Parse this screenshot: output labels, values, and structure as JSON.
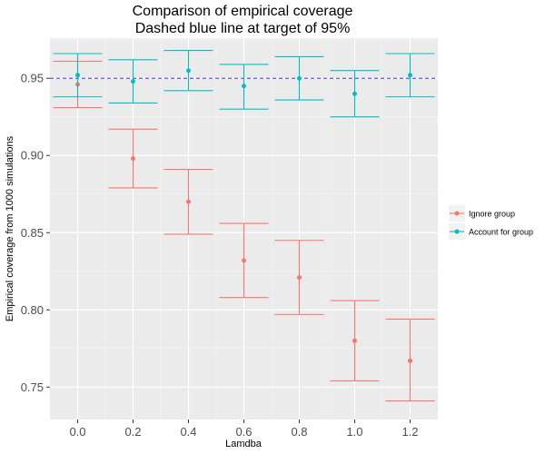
{
  "chart_data": {
    "type": "scatter",
    "title": [
      "Comparison of empirical coverage",
      "Dashed blue line at target of 95%"
    ],
    "xlabel": "Lamdba",
    "ylabel": "Empirical coverage from 1000 simulations",
    "x_ticks": [
      "0.0",
      "0.2",
      "0.4",
      "0.6",
      "0.8",
      "1.0",
      "1.2"
    ],
    "y_ticks": [
      "0.75",
      "0.80",
      "0.85",
      "0.90",
      "0.95"
    ],
    "xlim": [
      -0.1,
      1.3
    ],
    "ylim": [
      0.729,
      0.976
    ],
    "reference_line": {
      "y": 0.95,
      "style": "dashed",
      "color": "#3333ff"
    },
    "grid": true,
    "legend_position": "right",
    "error_bars": true,
    "series": [
      {
        "name": "Ignore group",
        "color": "#f8766d",
        "x": [
          0.0,
          0.2,
          0.4,
          0.6,
          0.8,
          1.0,
          1.2
        ],
        "y": [
          0.946,
          0.898,
          0.87,
          0.832,
          0.821,
          0.78,
          0.767
        ],
        "lower": [
          0.931,
          0.879,
          0.849,
          0.808,
          0.797,
          0.754,
          0.741
        ],
        "upper": [
          0.961,
          0.917,
          0.891,
          0.856,
          0.845,
          0.806,
          0.794
        ]
      },
      {
        "name": "Account for group",
        "color": "#00bfc4",
        "x": [
          0.0,
          0.2,
          0.4,
          0.6,
          0.8,
          1.0,
          1.2
        ],
        "y": [
          0.952,
          0.948,
          0.955,
          0.945,
          0.95,
          0.94,
          0.952
        ],
        "lower": [
          0.938,
          0.934,
          0.942,
          0.93,
          0.936,
          0.925,
          0.938
        ],
        "upper": [
          0.966,
          0.962,
          0.968,
          0.959,
          0.964,
          0.955,
          0.966
        ]
      }
    ]
  }
}
